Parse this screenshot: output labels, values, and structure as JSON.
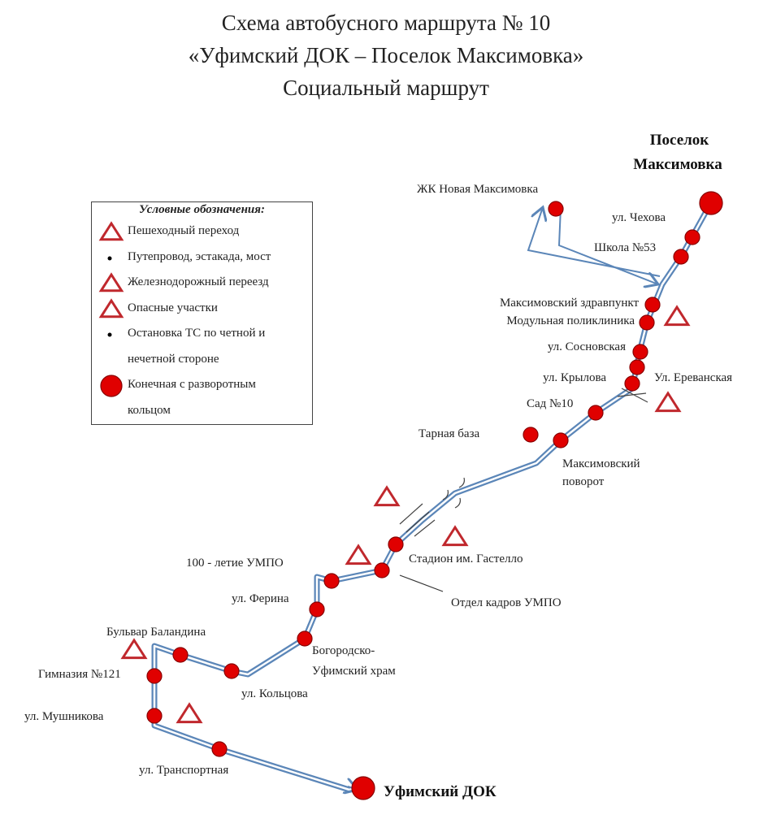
{
  "title": {
    "line1": "Схема автобусного маршрута № 10",
    "line2": "«Уфимский ДОК – Поселок Максимовка»",
    "line3": "Социальный маршрут"
  },
  "legend": {
    "heading": "Условные обозначения:",
    "items": [
      {
        "symbol": "triangle",
        "label": "Пешеходный переход"
      },
      {
        "symbol": "dot",
        "label": "Путепровод, эстакада, мост"
      },
      {
        "symbol": "triangle",
        "label": "Железнодорожный переезд"
      },
      {
        "symbol": "triangle",
        "label": "Опасные участки"
      },
      {
        "symbol": "dot",
        "label": "Остановка ТС по четной и"
      },
      {
        "symbol": "none",
        "label": "нечетной стороне"
      },
      {
        "symbol": "circle",
        "label": "Конечная с разворотным"
      },
      {
        "symbol": "none",
        "label": "кольцом"
      }
    ]
  },
  "terminals": {
    "end1": "Поселок",
    "end2": "Максимовка",
    "start": "Уфимский ДОК"
  },
  "stops": {
    "novaya": "ЖК Новая Максимовка",
    "chekhova": "ул. Чехова",
    "school53": "Школа №53",
    "zdrav": "Максимовский здравпункт",
    "modul": "Модульная поликлиника",
    "sosnov": "ул. Сосновская",
    "krylova": "ул. Крылова",
    "erevan": "Ул. Ереванская",
    "sad10": "Сад №10",
    "tarnaya": "Тарная база",
    "povorot1": "Максимовский",
    "povorot2": "поворот",
    "gastello": "Стадион им. Гастелло",
    "umpo100": "100 - летие УМПО",
    "kadry": "Отдел кадров УМПО",
    "ferina": "ул. Ферина",
    "hram1": "Богородско-",
    "hram2": "Уфимский храм",
    "kolcova": "ул. Кольцова",
    "balandina": "Бульвар Баландина",
    "gimn121": "Гимназия №121",
    "mushnikova": "ул. Мушникова",
    "transport": "ул. Транспортная"
  },
  "colors": {
    "route": "#5b86b8",
    "stop": "#e00000",
    "warning": "#c0282d"
  }
}
